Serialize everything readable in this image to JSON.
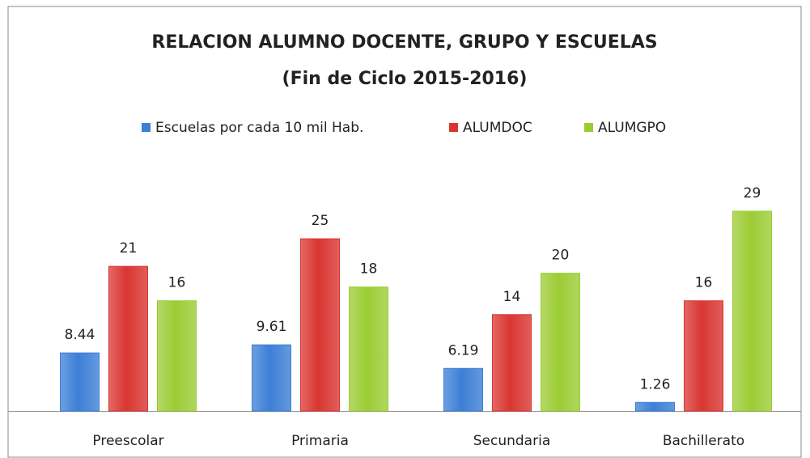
{
  "chart_data": {
    "type": "bar",
    "title": "RELACION ALUMNO DOCENTE, GRUPO Y ESCUELAS",
    "subtitle": "(Fin de Ciclo 2015-2016)",
    "categories": [
      "Preescolar",
      "Primaria",
      "Secundaria",
      "Bachillerato"
    ],
    "series": [
      {
        "name": "Escuelas por cada 10 mil Hab.",
        "color": "#3d7fd6",
        "values": [
          8.44,
          9.61,
          6.19,
          1.26
        ]
      },
      {
        "name": "ALUMDOC",
        "color": "#d93632",
        "values": [
          21,
          25,
          14,
          16
        ]
      },
      {
        "name": "ALUMGPO",
        "color": "#9ccc35",
        "values": [
          16,
          18,
          20,
          29
        ]
      }
    ],
    "legend": "top"
  }
}
